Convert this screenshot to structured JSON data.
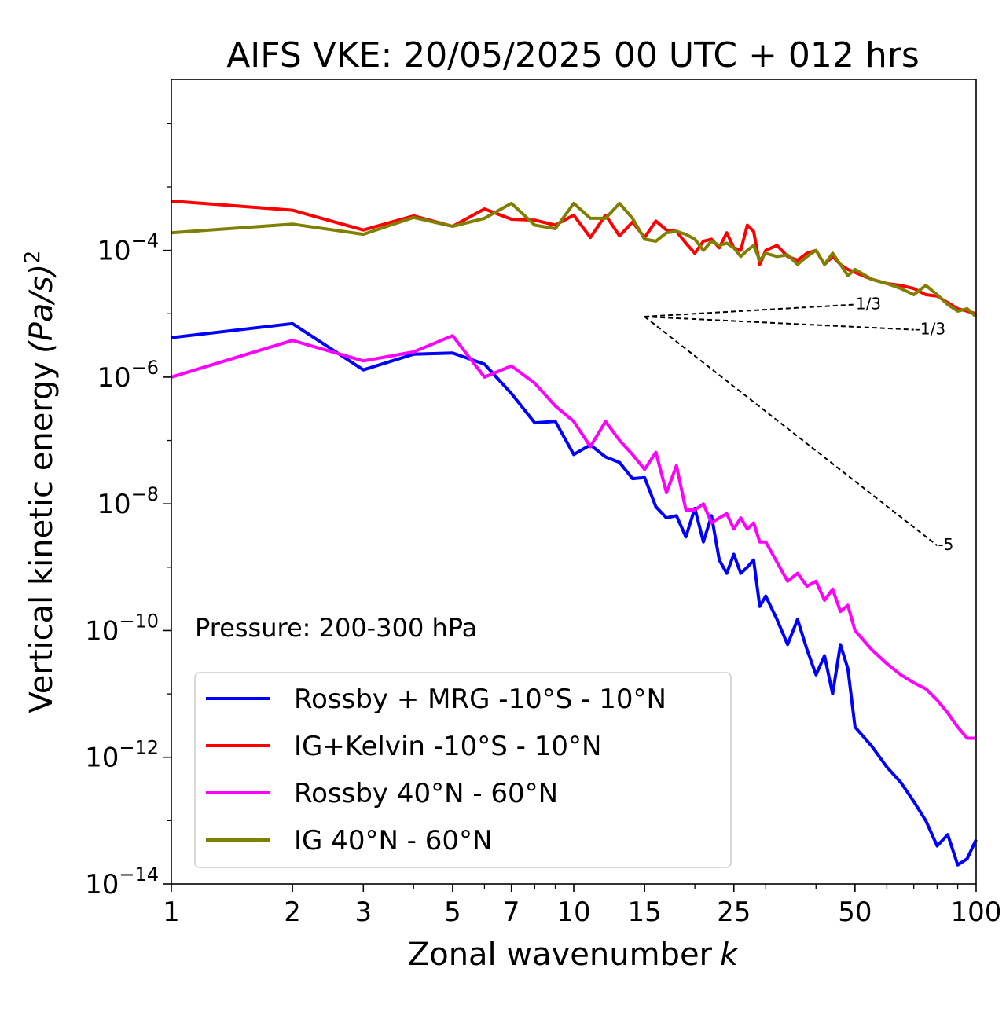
{
  "chart_data": {
    "type": "line",
    "title": "AIFS VKE: 20/05/2025 00 UTC + 012 hrs",
    "xlabel": "Zonal wavenumber",
    "xlabel_var": "k",
    "ylabel": "Vertical kinetic energy",
    "ylabel_var": "(Pa/s)",
    "ylabel_exp": "2",
    "xscale": "log",
    "yscale": "log",
    "xlim": [
      1,
      100
    ],
    "ylim": [
      1e-14,
      0.05
    ],
    "grid": false,
    "legend_location": "lower-left",
    "annotation": "Pressure: 200-300 hPa",
    "x_ticks": [
      {
        "value": 1,
        "label": "1"
      },
      {
        "value": 2,
        "label": "2"
      },
      {
        "value": 3,
        "label": "3"
      },
      {
        "value": 5,
        "label": "5"
      },
      {
        "value": 7,
        "label": "7"
      },
      {
        "value": 10,
        "label": "10"
      },
      {
        "value": 15,
        "label": "15"
      },
      {
        "value": 25,
        "label": "25"
      },
      {
        "value": 50,
        "label": "50"
      },
      {
        "value": 100,
        "label": "100"
      }
    ],
    "y_ticks": [
      {
        "value": 0.0001,
        "base": "10",
        "exp": "−4"
      },
      {
        "value": 1e-06,
        "base": "10",
        "exp": "−6"
      },
      {
        "value": 1e-08,
        "base": "10",
        "exp": "−8"
      },
      {
        "value": 1e-10,
        "base": "10",
        "exp": "−10"
      },
      {
        "value": 1e-12,
        "base": "10",
        "exp": "−12"
      },
      {
        "value": 1e-14,
        "base": "10",
        "exp": "−14"
      }
    ],
    "reference_lines": [
      {
        "label": "1/3",
        "x": [
          15,
          50
        ],
        "y": [
          9e-06,
          1.4e-05
        ]
      },
      {
        "label": "-1/3",
        "x": [
          15,
          70
        ],
        "y": [
          9e-06,
          5.6e-06
        ]
      },
      {
        "label": "-5",
        "x": [
          15,
          80
        ],
        "y": [
          9e-06,
          2.2e-09
        ]
      }
    ],
    "series": [
      {
        "name": "Rossby + MRG -10°S - 10°N",
        "color": "#0000ff",
        "x": [
          1,
          2,
          3,
          4,
          5,
          6,
          7,
          8,
          9,
          10,
          11,
          12,
          13,
          14,
          15,
          16,
          17,
          18,
          19,
          20,
          21,
          22,
          23,
          24,
          25,
          26,
          27,
          28,
          29,
          30,
          32,
          34,
          36,
          38,
          40,
          42,
          44,
          46,
          48,
          50,
          55,
          60,
          65,
          70,
          75,
          80,
          85,
          90,
          95,
          100
        ],
        "y": [
          4.2e-06,
          7e-06,
          1.3e-06,
          2.3e-06,
          2.4e-06,
          1.6e-06,
          5.5e-07,
          1.9e-07,
          2e-07,
          6e-08,
          8.5e-08,
          5.5e-08,
          4.5e-08,
          2.5e-08,
          2.6e-08,
          9e-09,
          6e-09,
          6.5e-09,
          3e-09,
          8.5e-09,
          2.5e-09,
          6.5e-09,
          1.3e-09,
          8e-10,
          1.6e-09,
          8e-10,
          1e-09,
          1.3e-09,
          2.4e-10,
          3.5e-10,
          1.5e-10,
          6e-11,
          1.5e-10,
          5e-11,
          2e-11,
          4e-11,
          1e-11,
          6e-11,
          2.5e-11,
          3e-12,
          1.5e-12,
          7e-13,
          4e-13,
          2e-13,
          1e-13,
          4e-14,
          6e-14,
          2e-14,
          2.5e-14,
          5e-14
        ]
      },
      {
        "name": "IG+Kelvin -10°S - 10°N",
        "color": "#ff0000",
        "x": [
          1,
          2,
          3,
          4,
          5,
          6,
          7,
          8,
          9,
          10,
          11,
          12,
          13,
          14,
          15,
          16,
          17,
          18,
          19,
          20,
          21,
          22,
          23,
          24,
          25,
          26,
          27,
          28,
          29,
          30,
          32,
          34,
          36,
          38,
          40,
          42,
          44,
          46,
          48,
          50,
          55,
          60,
          65,
          70,
          75,
          80,
          85,
          90,
          95,
          100
        ],
        "y": [
          0.0006,
          0.00043,
          0.00021,
          0.00035,
          0.00024,
          0.00045,
          0.00031,
          0.0003,
          0.00025,
          0.00036,
          0.00016,
          0.00036,
          0.00017,
          0.00028,
          0.00016,
          0.00029,
          0.00021,
          0.0002,
          0.00013,
          9e-05,
          0.00014,
          0.00015,
          0.00011,
          0.00019,
          0.00011,
          0.0001,
          0.00025,
          0.0002,
          6e-05,
          0.0001,
          0.00012,
          8e-05,
          7e-05,
          9e-05,
          0.0001,
          6e-05,
          8e-05,
          6e-05,
          5e-05,
          4.5e-05,
          3.5e-05,
          3e-05,
          2.8e-05,
          2.5e-05,
          2e-05,
          1.9e-05,
          1.5e-05,
          1.2e-05,
          1.1e-05,
          1e-05
        ]
      },
      {
        "name": "Rossby 40°N - 60°N",
        "color": "#ff00ff",
        "x": [
          1,
          2,
          3,
          4,
          5,
          6,
          7,
          8,
          9,
          10,
          11,
          12,
          13,
          14,
          15,
          16,
          17,
          18,
          19,
          20,
          21,
          22,
          23,
          24,
          25,
          26,
          27,
          28,
          29,
          30,
          32,
          34,
          36,
          38,
          40,
          42,
          44,
          46,
          48,
          50,
          55,
          60,
          65,
          70,
          75,
          80,
          85,
          90,
          95,
          100
        ],
        "y": [
          1e-06,
          3.8e-06,
          1.8e-06,
          2.5e-06,
          4.5e-06,
          1e-06,
          1.5e-06,
          8e-07,
          3.5e-07,
          2e-07,
          8e-08,
          2e-07,
          1e-07,
          6e-08,
          3.5e-08,
          6.5e-08,
          1.5e-08,
          4e-08,
          8e-09,
          8e-09,
          1e-08,
          5e-09,
          6e-09,
          7e-09,
          4e-09,
          6e-09,
          4e-09,
          5e-09,
          2.5e-09,
          2.5e-09,
          1.2e-09,
          6e-10,
          8e-10,
          5e-10,
          6e-10,
          3e-10,
          4.5e-10,
          2e-10,
          2.5e-10,
          1e-10,
          5e-11,
          3e-11,
          2e-11,
          1.5e-11,
          1.2e-11,
          8e-12,
          5e-12,
          3e-12,
          2e-12,
          2e-12
        ]
      },
      {
        "name": "IG 40°N - 60°N",
        "color": "#808000",
        "x": [
          1,
          2,
          3,
          4,
          5,
          6,
          7,
          8,
          9,
          10,
          11,
          12,
          13,
          14,
          15,
          16,
          17,
          18,
          19,
          20,
          21,
          22,
          23,
          24,
          25,
          26,
          27,
          28,
          29,
          30,
          32,
          34,
          36,
          38,
          40,
          42,
          44,
          46,
          48,
          50,
          55,
          60,
          65,
          70,
          75,
          80,
          85,
          90,
          95,
          100
        ],
        "y": [
          0.00019,
          0.00026,
          0.00018,
          0.00033,
          0.00024,
          0.00032,
          0.00055,
          0.00025,
          0.00022,
          0.00055,
          0.00032,
          0.00032,
          0.00055,
          0.00032,
          0.00015,
          0.00014,
          0.00019,
          0.0002,
          0.00018,
          0.00015,
          0.0001,
          0.00014,
          0.00012,
          0.00013,
          0.00011,
          8e-05,
          0.0001,
          0.00012,
          7e-05,
          9e-05,
          8e-05,
          8.5e-05,
          6e-05,
          8e-05,
          0.0001,
          6e-05,
          9e-05,
          6e-05,
          4e-05,
          5e-05,
          3.5e-05,
          3e-05,
          2.5e-05,
          2e-05,
          2.8e-05,
          2e-05,
          1.4e-05,
          1.1e-05,
          1.2e-05,
          9e-06
        ]
      }
    ]
  }
}
